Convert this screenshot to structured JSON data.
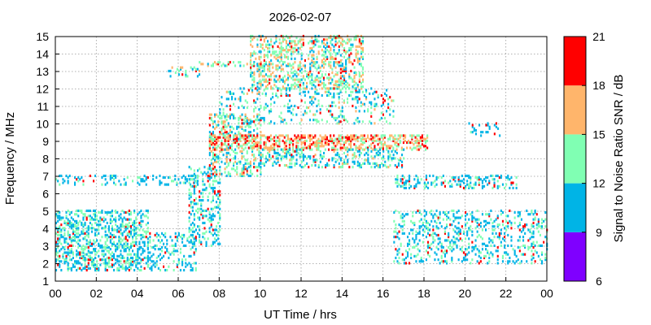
{
  "chart_data": {
    "type": "heatmap",
    "title": "2026-02-07",
    "xlabel": "UT Time / hrs",
    "ylabel": "Frequency / MHz",
    "colorbar_label": "Signal to Noise Ratio SNR / dB",
    "xlim": [
      0,
      24
    ],
    "ylim": [
      1,
      15
    ],
    "x_ticks": [
      "00",
      "02",
      "04",
      "06",
      "08",
      "10",
      "12",
      "14",
      "16",
      "18",
      "20",
      "22",
      "00"
    ],
    "x_tick_values": [
      0,
      2,
      4,
      6,
      8,
      10,
      12,
      14,
      16,
      18,
      20,
      22,
      24
    ],
    "y_ticks": [
      "1",
      "2",
      "3",
      "4",
      "5",
      "6",
      "7",
      "8",
      "9",
      "10",
      "11",
      "12",
      "13",
      "14",
      "15"
    ],
    "y_tick_values": [
      1,
      2,
      3,
      4,
      5,
      6,
      7,
      8,
      9,
      10,
      11,
      12,
      13,
      14,
      15
    ],
    "grid": true,
    "colorbar": {
      "ticks": [
        "6",
        "9",
        "12",
        "15",
        "18",
        "21"
      ],
      "tick_values": [
        6,
        9,
        12,
        15,
        18,
        21
      ],
      "bins": [
        {
          "from": 6,
          "to": 9,
          "color": "#7f00ff"
        },
        {
          "from": 9,
          "to": 12,
          "color": "#00b4e6"
        },
        {
          "from": 12,
          "to": 15,
          "color": "#80ffb3"
        },
        {
          "from": 15,
          "to": 18,
          "color": "#ffb56b"
        },
        {
          "from": 18,
          "to": 21,
          "color": "#ff0000"
        }
      ]
    },
    "regions": [
      {
        "x": [
          0,
          4.5
        ],
        "y": [
          1.6,
          5.0
        ],
        "snr": 11.5,
        "density": 0.75
      },
      {
        "x": [
          4.5,
          6.9
        ],
        "y": [
          1.6,
          3.8
        ],
        "snr": 10.5,
        "density": 0.4
      },
      {
        "x": [
          0,
          6.9
        ],
        "y": [
          6.5,
          7.0
        ],
        "snr": 10,
        "density": 0.35
      },
      {
        "x": [
          5.5,
          7.0
        ],
        "y": [
          12.7,
          13.2
        ],
        "snr": 13,
        "density": 0.5
      },
      {
        "x": [
          6.5,
          8.0
        ],
        "y": [
          3.0,
          7.5
        ],
        "snr": 11,
        "density": 0.5
      },
      {
        "x": [
          7.5,
          10.0
        ],
        "y": [
          7.0,
          10.5
        ],
        "snr": 13,
        "density": 0.55
      },
      {
        "x": [
          7.5,
          18.2
        ],
        "y": [
          8.5,
          9.3
        ],
        "snr": 16,
        "density": 0.85
      },
      {
        "x": [
          8.0,
          16.5
        ],
        "y": [
          10.0,
          12.0
        ],
        "snr": 12,
        "density": 0.3
      },
      {
        "x": [
          9.5,
          15.0
        ],
        "y": [
          12.0,
          15.0
        ],
        "snr": 14,
        "density": 0.65
      },
      {
        "x": [
          7.0,
          10.0
        ],
        "y": [
          13.3,
          13.6
        ],
        "snr": 15,
        "density": 0.5
      },
      {
        "x": [
          10.0,
          17.0
        ],
        "y": [
          7.5,
          8.5
        ],
        "snr": 12,
        "density": 0.5
      },
      {
        "x": [
          16.5,
          22.5
        ],
        "y": [
          6.3,
          7.0
        ],
        "snr": 11,
        "density": 0.5
      },
      {
        "x": [
          16.5,
          24.0
        ],
        "y": [
          2.0,
          5.0
        ],
        "snr": 11,
        "density": 0.4
      },
      {
        "x": [
          20.0,
          22.0
        ],
        "y": [
          9.3,
          10.0
        ],
        "snr": 10,
        "density": 0.2
      }
    ]
  }
}
